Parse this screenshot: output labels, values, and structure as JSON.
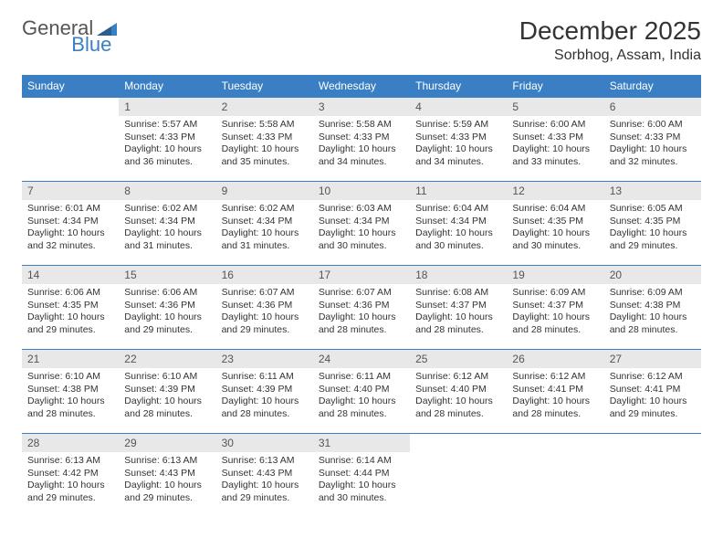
{
  "brand": {
    "part1": "General",
    "part2": "Blue"
  },
  "title": "December 2025",
  "location": "Sorbhog, Assam, India",
  "colors": {
    "header_bg": "#3a7fc4",
    "header_text": "#ffffff",
    "daynum_bg": "#e8e8e8",
    "daynum_text": "#555555",
    "border": "#3a7fc4",
    "body_text": "#333333",
    "page_bg": "#ffffff"
  },
  "layout": {
    "columns": 7,
    "rows": 5,
    "col_headers_fontsize": 12,
    "daynum_fontsize": 12,
    "body_fontsize": 10.5,
    "title_fontsize": 28,
    "location_fontsize": 16
  },
  "weekdays": [
    "Sunday",
    "Monday",
    "Tuesday",
    "Wednesday",
    "Thursday",
    "Friday",
    "Saturday"
  ],
  "first_weekday_index": 1,
  "days": [
    {
      "n": 1,
      "sunrise": "5:57 AM",
      "sunset": "4:33 PM",
      "daylight": "10 hours and 36 minutes."
    },
    {
      "n": 2,
      "sunrise": "5:58 AM",
      "sunset": "4:33 PM",
      "daylight": "10 hours and 35 minutes."
    },
    {
      "n": 3,
      "sunrise": "5:58 AM",
      "sunset": "4:33 PM",
      "daylight": "10 hours and 34 minutes."
    },
    {
      "n": 4,
      "sunrise": "5:59 AM",
      "sunset": "4:33 PM",
      "daylight": "10 hours and 34 minutes."
    },
    {
      "n": 5,
      "sunrise": "6:00 AM",
      "sunset": "4:33 PM",
      "daylight": "10 hours and 33 minutes."
    },
    {
      "n": 6,
      "sunrise": "6:00 AM",
      "sunset": "4:33 PM",
      "daylight": "10 hours and 32 minutes."
    },
    {
      "n": 7,
      "sunrise": "6:01 AM",
      "sunset": "4:34 PM",
      "daylight": "10 hours and 32 minutes."
    },
    {
      "n": 8,
      "sunrise": "6:02 AM",
      "sunset": "4:34 PM",
      "daylight": "10 hours and 31 minutes."
    },
    {
      "n": 9,
      "sunrise": "6:02 AM",
      "sunset": "4:34 PM",
      "daylight": "10 hours and 31 minutes."
    },
    {
      "n": 10,
      "sunrise": "6:03 AM",
      "sunset": "4:34 PM",
      "daylight": "10 hours and 30 minutes."
    },
    {
      "n": 11,
      "sunrise": "6:04 AM",
      "sunset": "4:34 PM",
      "daylight": "10 hours and 30 minutes."
    },
    {
      "n": 12,
      "sunrise": "6:04 AM",
      "sunset": "4:35 PM",
      "daylight": "10 hours and 30 minutes."
    },
    {
      "n": 13,
      "sunrise": "6:05 AM",
      "sunset": "4:35 PM",
      "daylight": "10 hours and 29 minutes."
    },
    {
      "n": 14,
      "sunrise": "6:06 AM",
      "sunset": "4:35 PM",
      "daylight": "10 hours and 29 minutes."
    },
    {
      "n": 15,
      "sunrise": "6:06 AM",
      "sunset": "4:36 PM",
      "daylight": "10 hours and 29 minutes."
    },
    {
      "n": 16,
      "sunrise": "6:07 AM",
      "sunset": "4:36 PM",
      "daylight": "10 hours and 29 minutes."
    },
    {
      "n": 17,
      "sunrise": "6:07 AM",
      "sunset": "4:36 PM",
      "daylight": "10 hours and 28 minutes."
    },
    {
      "n": 18,
      "sunrise": "6:08 AM",
      "sunset": "4:37 PM",
      "daylight": "10 hours and 28 minutes."
    },
    {
      "n": 19,
      "sunrise": "6:09 AM",
      "sunset": "4:37 PM",
      "daylight": "10 hours and 28 minutes."
    },
    {
      "n": 20,
      "sunrise": "6:09 AM",
      "sunset": "4:38 PM",
      "daylight": "10 hours and 28 minutes."
    },
    {
      "n": 21,
      "sunrise": "6:10 AM",
      "sunset": "4:38 PM",
      "daylight": "10 hours and 28 minutes."
    },
    {
      "n": 22,
      "sunrise": "6:10 AM",
      "sunset": "4:39 PM",
      "daylight": "10 hours and 28 minutes."
    },
    {
      "n": 23,
      "sunrise": "6:11 AM",
      "sunset": "4:39 PM",
      "daylight": "10 hours and 28 minutes."
    },
    {
      "n": 24,
      "sunrise": "6:11 AM",
      "sunset": "4:40 PM",
      "daylight": "10 hours and 28 minutes."
    },
    {
      "n": 25,
      "sunrise": "6:12 AM",
      "sunset": "4:40 PM",
      "daylight": "10 hours and 28 minutes."
    },
    {
      "n": 26,
      "sunrise": "6:12 AM",
      "sunset": "4:41 PM",
      "daylight": "10 hours and 28 minutes."
    },
    {
      "n": 27,
      "sunrise": "6:12 AM",
      "sunset": "4:41 PM",
      "daylight": "10 hours and 29 minutes."
    },
    {
      "n": 28,
      "sunrise": "6:13 AM",
      "sunset": "4:42 PM",
      "daylight": "10 hours and 29 minutes."
    },
    {
      "n": 29,
      "sunrise": "6:13 AM",
      "sunset": "4:43 PM",
      "daylight": "10 hours and 29 minutes."
    },
    {
      "n": 30,
      "sunrise": "6:13 AM",
      "sunset": "4:43 PM",
      "daylight": "10 hours and 29 minutes."
    },
    {
      "n": 31,
      "sunrise": "6:14 AM",
      "sunset": "4:44 PM",
      "daylight": "10 hours and 30 minutes."
    }
  ],
  "labels": {
    "sunrise": "Sunrise:",
    "sunset": "Sunset:",
    "daylight": "Daylight:"
  }
}
